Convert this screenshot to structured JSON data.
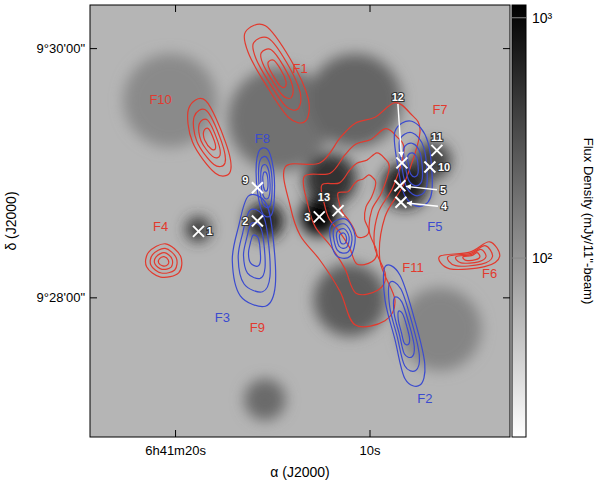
{
  "chart_data": {
    "type": "contour",
    "xlabel": "α (J2000)",
    "ylabel": "δ (J2000)",
    "xlim": [
      24.4,
      2.8
    ],
    "xticks": [
      {
        "value": 20,
        "label": "6h41m20s"
      },
      {
        "value": 10,
        "label": "10s"
      }
    ],
    "ylim": [
      34013,
      34221
    ],
    "yticks": [
      {
        "value": 34200,
        "label": "9°30'00\""
      },
      {
        "value": 34080,
        "label": "9°28'00\""
      }
    ],
    "image": {
      "background": 60,
      "peaks": [
        {
          "ra": 20.28,
          "dec": 34175,
          "flux": 120,
          "size": 45
        },
        {
          "ra": 6.4,
          "dec": 34065,
          "flux": 130,
          "size": 40
        },
        {
          "ra": 14.63,
          "dec": 34166,
          "flux": 180,
          "size": 50
        },
        {
          "ra": 15.4,
          "dec": 34031,
          "flux": 200,
          "size": 20
        },
        {
          "ra": 10.77,
          "dec": 34175,
          "flux": 220,
          "size": 45
        },
        {
          "ra": 11.03,
          "dec": 34079,
          "flux": 250,
          "size": 35
        },
        {
          "ra": 6.8,
          "dec": 34146,
          "flux": 400,
          "size": 18
        },
        {
          "ra": 18.84,
          "dec": 34113,
          "flux": 450,
          "size": 12
        },
        {
          "ra": 12.05,
          "dec": 34137,
          "flux": 500,
          "size": 25
        },
        {
          "ra": 15.4,
          "dec": 34117,
          "flux": 650,
          "size": 18
        },
        {
          "ra": 8.2,
          "dec": 34134,
          "flux": 700,
          "size": 22
        },
        {
          "ra": 12.62,
          "dec": 34119,
          "flux": 1100,
          "size": 18
        }
      ]
    },
    "colorbar": {
      "label": "Flux Density (mJy/11''-beam)",
      "log": true,
      "range": [
        18,
        1130
      ],
      "ticks": [
        {
          "value": 100,
          "label": "10²"
        },
        {
          "value": 1000,
          "label": "10³"
        }
      ]
    },
    "series": [
      {
        "color": "#e23a2e",
        "contours": [
          {
            "ra": [
              16.41,
              15.38,
              14.1,
              13.18,
              13.33,
              14.2,
              15.38,
              16.26
            ],
            "dec": [
              34208,
              34211,
              34195,
              34176,
              34165,
              34167,
              34183,
              34198
            ]
          },
          {
            "ra": [
              19.33,
              18.46,
              17.43,
              17.18,
              17.95,
              19.13
            ],
            "dec": [
              34171,
              34175,
              34155,
              34141,
              34140,
              34155
            ]
          },
          {
            "ra": [
              21.38,
              20.51,
              19.74,
              19.84,
              20.77,
              21.49
            ],
            "dec": [
              34102,
              34106,
              34100,
              34092,
              34090,
              34095
            ]
          },
          {
            "ra": [
              14.36,
              12.56,
              11.54,
              10.77,
              9.74,
              8.72,
              7.95,
              7.43,
              8.2,
              9.23,
              9.49,
              8.72,
              9.23,
              10.77,
              11.54,
              12.56,
              13.59,
              14.1
            ],
            "dec": [
              34143,
              34145,
              34157,
              34164,
              34167,
              34174,
              34169,
              34160,
              34136,
              34119,
              34098,
              34079,
              34069,
              34067,
              34083,
              34098,
              34110,
              34124
            ]
          },
          {
            "ra": [
              6.41,
              4.87,
              3.85,
              3.33,
              4.1,
              5.9
            ],
            "dec": [
              34100,
              34102,
              34107,
              34100,
              34095,
              34094
            ]
          }
        ]
      },
      {
        "color": "#3b4bcf",
        "contours": [
          {
            "ra": [
              15.74,
              15.23,
              14.92,
              15.02,
              15.54,
              15.84
            ],
            "dec": [
              34150,
              34151,
              34138,
              34121,
              34121,
              34136
            ]
          },
          {
            "ra": [
              16.26,
              15.38,
              15.02,
              14.87,
              15.38,
              16.67,
              17.08,
              16.77
            ],
            "dec": [
              34129,
              34126,
              34112,
              34086,
              34076,
              34081,
              34098,
              34114
            ]
          },
          {
            "ra": [
              8.72,
              7.85,
              7.02,
              6.82,
              7.43,
              8.2,
              8.56
            ],
            "dec": [
              34160,
              34165,
              34155,
              34131,
              34124,
              34129,
              34143
            ]
          },
          {
            "ra": [
              12.05,
              11.28,
              10.77,
              11.02,
              11.79
            ],
            "dec": [
              34114,
              34118,
              34110,
              34100,
              34101
            ]
          },
          {
            "ra": [
              9.23,
              8.46,
              7.69,
              7.18,
              7.43,
              8.2,
              8.72,
              9.23
            ],
            "dec": [
              34095,
              34091,
              34069,
              34048,
              34038,
              34041,
              34060,
              34079
            ]
          }
        ]
      }
    ],
    "annotations": [
      {
        "text": "F1",
        "ra": 13.59,
        "dec": 34190,
        "color": "#e23a2e"
      },
      {
        "text": "F10",
        "ra": 20.77,
        "dec": 34175,
        "color": "#e23a2e"
      },
      {
        "text": "F7",
        "ra": 6.4,
        "dec": 34170,
        "color": "#e23a2e"
      },
      {
        "text": "F8",
        "ra": 15.54,
        "dec": 34156,
        "color": "#3b4bcf"
      },
      {
        "text": "F4",
        "ra": 20.77,
        "dec": 34114,
        "color": "#e23a2e"
      },
      {
        "text": "F9",
        "ra": 15.79,
        "dec": 34065,
        "color": "#e23a2e"
      },
      {
        "text": "F3",
        "ra": 17.59,
        "dec": 34070,
        "color": "#3b4bcf"
      },
      {
        "text": "F5",
        "ra": 6.66,
        "dec": 34114,
        "color": "#3b4bcf"
      },
      {
        "text": "F6",
        "ra": 3.85,
        "dec": 34091,
        "color": "#e23a2e"
      },
      {
        "text": "F11",
        "ra": 7.79,
        "dec": 34094,
        "color": "#e23a2e"
      },
      {
        "text": "F2",
        "ra": 7.18,
        "dec": 34031,
        "color": "#3b4bcf"
      }
    ],
    "sources": {
      "marker": "x",
      "color": "#ffffff",
      "labels": [
        "1",
        "2",
        "3",
        "4",
        "5",
        "9",
        "10",
        "11",
        "12",
        "13"
      ],
      "ra": [
        18.82,
        15.79,
        12.61,
        8.41,
        8.46,
        15.79,
        6.92,
        6.56,
        8.36,
        11.64
      ],
      "dec": [
        34112,
        34117,
        34119,
        34126,
        34134,
        34133,
        34143,
        34151,
        34145,
        34122
      ]
    }
  }
}
